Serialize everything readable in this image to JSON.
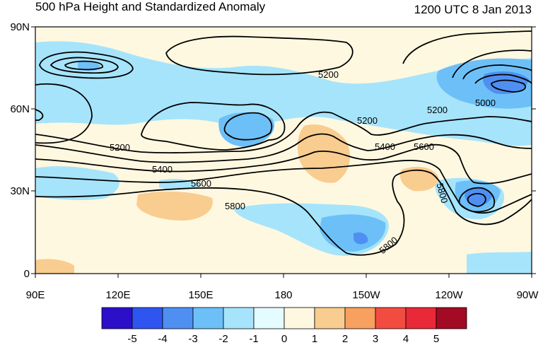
{
  "header": {
    "title": "500 hPa Height and Standardized Anomaly",
    "datetime": "1200 UTC 8 Jan 2013"
  },
  "axes": {
    "lat_labels": [
      "90N",
      "60N",
      "30N",
      "0"
    ],
    "lon_labels": [
      "90E",
      "120E",
      "150E",
      "180",
      "150W",
      "120W",
      "90W"
    ]
  },
  "contour_labels": [
    "5200",
    "5000",
    "5200",
    "5200",
    "5400",
    "5600",
    "5200",
    "5400",
    "5600",
    "5800",
    "5800",
    "5800"
  ],
  "colorbar": {
    "labels": [
      "-5",
      "-4",
      "-3",
      "-2",
      "-1",
      "0",
      "1",
      "2",
      "3",
      "4",
      "5"
    ],
    "colors": [
      "#2b0fc9",
      "#2e55f0",
      "#4f8ff2",
      "#6dc0f7",
      "#a6e4fb",
      "#e4fbff",
      "#fff8e1",
      "#f9cc8f",
      "#f8a060",
      "#f24c40",
      "#e92838",
      "#a30a23"
    ]
  }
}
